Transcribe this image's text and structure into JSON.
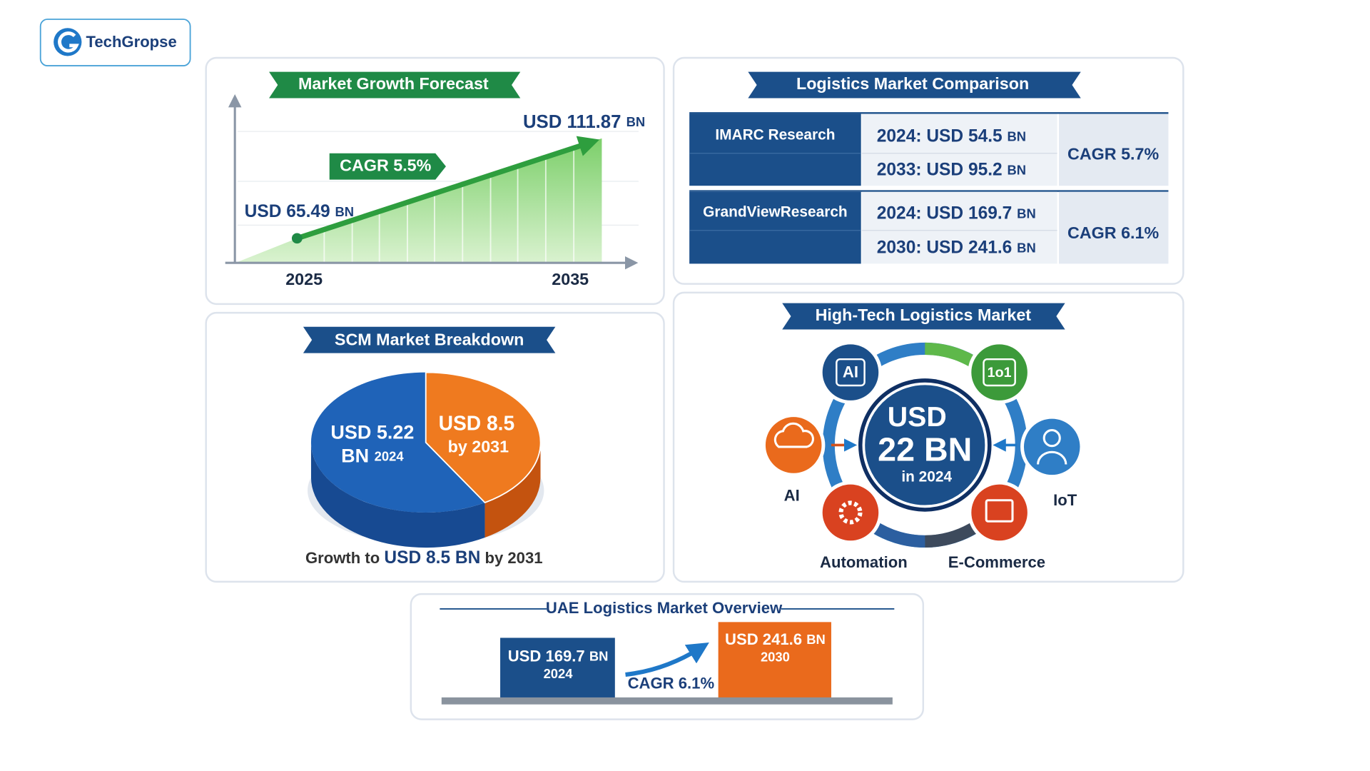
{
  "logo": {
    "text": "TechGropse"
  },
  "growth": {
    "title": "Market Growth Forecast",
    "start_amount": "USD 65.49",
    "start_unit": "BN",
    "end_amount": "USD 111.87",
    "end_unit": "BN",
    "cagr": "CAGR 5.5%",
    "x_labels": [
      "2025",
      "2035"
    ]
  },
  "comparison": {
    "title": "Logistics Market Comparison",
    "rows": [
      {
        "source": "IMARC Research",
        "values": [
          {
            "amount": "2024: USD 54.5",
            "unit": "BN"
          },
          {
            "amount": "2033: USD 95.2",
            "unit": "BN"
          }
        ],
        "cagr": "CAGR 5.7%"
      },
      {
        "source": "GrandViewResearch",
        "values": [
          {
            "amount": "2024: USD 169.7",
            "unit": "BN"
          },
          {
            "amount": "2030: USD 241.6",
            "unit": "BN"
          }
        ],
        "cagr": "CAGR 6.1%"
      }
    ]
  },
  "scm": {
    "title": "SCM Market Breakdown",
    "blue_label": {
      "amount": "USD 5.22",
      "unit": "BN",
      "year": "2024"
    },
    "orange_label": {
      "amount": "USD 8.5",
      "year": "by 2031"
    },
    "caption": {
      "before": "Growth to",
      "highlight": "USD 8.5 BN",
      "after": "by 2031"
    }
  },
  "hightech": {
    "title": "High-Tech Logistics Market",
    "center": {
      "currency": "USD",
      "amount": "22 BN",
      "year": "in 2024"
    },
    "icons": [
      "AI",
      "1o1"
    ],
    "labels": [
      "AI",
      "IoT",
      "Automation",
      "E-Commerce"
    ]
  },
  "uae": {
    "title": "UAE Logistics Market Overview",
    "start": {
      "amount": "USD 169.7",
      "unit": "BN",
      "year": "2024"
    },
    "end": {
      "amount": "USD 241.6",
      "unit": "BN",
      "year": "2030"
    },
    "cagr": "CAGR 6.1%"
  }
}
